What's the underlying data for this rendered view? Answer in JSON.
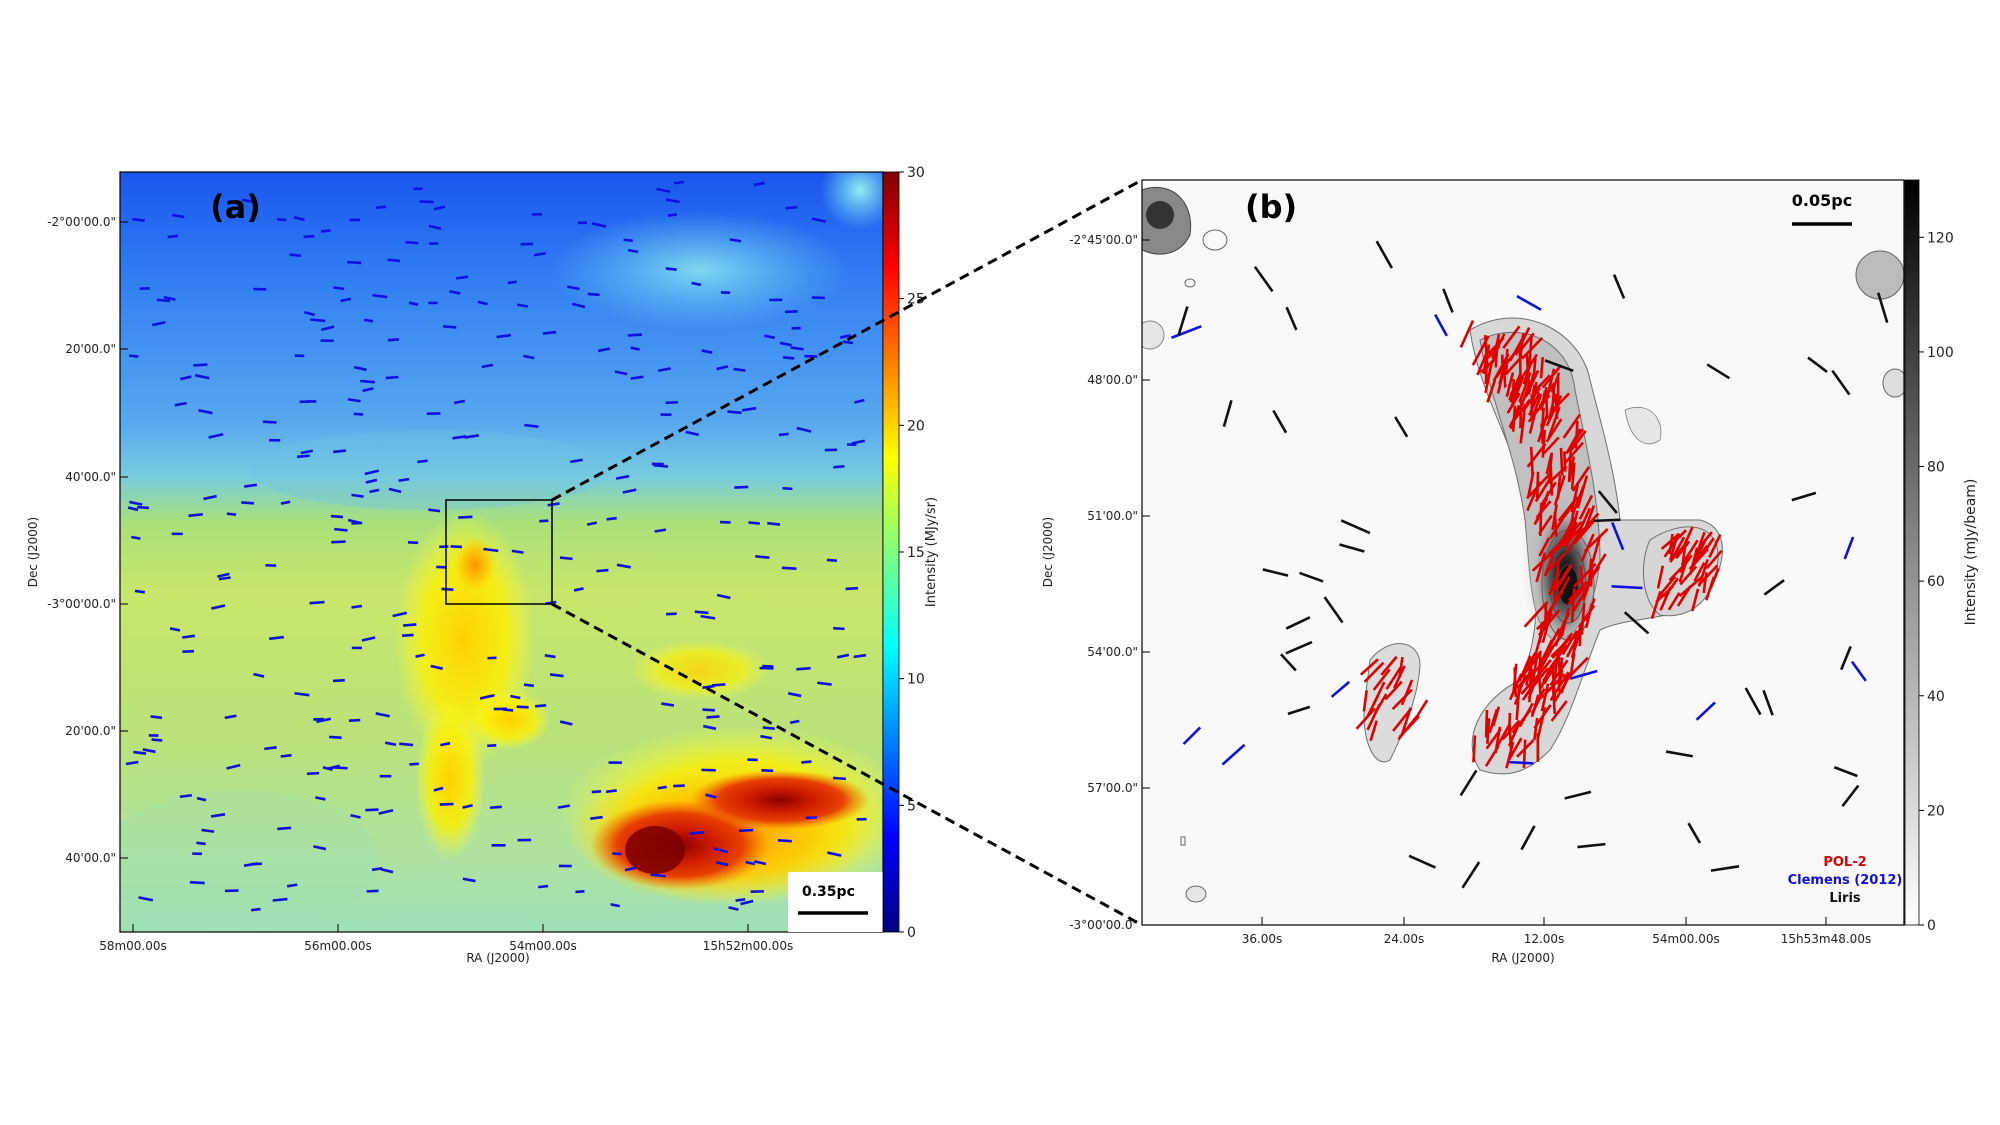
{
  "chart_data": [
    {
      "type": "heatmap",
      "panel_label": "(a)",
      "xlabel": "RA (J2000)",
      "ylabel": "Dec (J2000)",
      "x_ticks": [
        "58m00.00s",
        "56m00.00s",
        "54m00.00s",
        "15h52m00.00s"
      ],
      "y_ticks": [
        "-2°00'00.0\"",
        "20'00.0\"",
        "40'00.0\"",
        "-3°00'00.0\"",
        "20'00.0\"",
        "40'00.0\""
      ],
      "colorbar": {
        "label": "Intensity (MJy/sr)",
        "ticks": [
          0,
          5,
          10,
          15,
          20,
          25,
          30
        ],
        "range": [
          0,
          30
        ],
        "colormap": "jet",
        "colors": [
          "#00007f",
          "#0000ff",
          "#007fff",
          "#00ffff",
          "#7fff7f",
          "#ffff00",
          "#ff7f00",
          "#ff0000",
          "#7f0000"
        ]
      },
      "scale_bar": "0.35pc",
      "vector_color": "#1010e0",
      "zoom_box": true
    },
    {
      "type": "heatmap",
      "panel_label": "(b)",
      "xlabel": "RA (J2000)",
      "ylabel": "Dec (J2000)",
      "x_ticks": [
        "36.00s",
        "24.00s",
        "12.00s",
        "54m00.00s",
        "15h53m48.00s"
      ],
      "y_ticks": [
        "-2°45'00.0\"",
        "48'00.0\"",
        "51'00.0\"",
        "54'00.0\"",
        "57'00.0\"",
        "-3°00'00.0\""
      ],
      "colorbar": {
        "label": "Intensity (mJy/beam)",
        "ticks": [
          0,
          20,
          40,
          60,
          80,
          100,
          120
        ],
        "range": [
          0,
          130
        ],
        "colormap": "gray_r"
      },
      "scale_bar": "0.05pc",
      "legend": [
        {
          "name": "POL-2",
          "color": "#e00000"
        },
        {
          "name": "Clemens (2012)",
          "color": "#1010e0"
        },
        {
          "name": "Liris",
          "color": "#111111"
        }
      ],
      "legend_position": "bottom-right"
    }
  ]
}
